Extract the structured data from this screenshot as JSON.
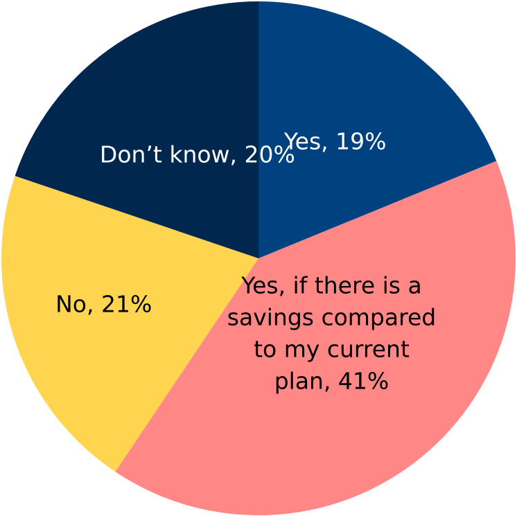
{
  "chart_data": {
    "type": "pie",
    "start_angle_deg": 0,
    "direction": "clockwise",
    "slices": [
      {
        "label_lines": [
          "Yes, 19%"
        ],
        "category": "Yes",
        "value": 19,
        "color": "#00417F",
        "text_color": "#ffffff"
      },
      {
        "label_lines": [
          "Yes, if there is a",
          "savings compared",
          "to my current",
          "plan, 41%"
        ],
        "category": "Yes, if there is a savings compared to my current plan",
        "value": 41,
        "color": "#FF8886",
        "text_color": "#000000"
      },
      {
        "label_lines": [
          "No, 21%"
        ],
        "category": "No",
        "value": 21,
        "color": "#FFD54F",
        "text_color": "#000000"
      },
      {
        "label_lines": [
          "Don’t know, 20%"
        ],
        "category": "Don’t know",
        "value": 20,
        "color": "#00284F",
        "text_color": "#ffffff"
      }
    ]
  }
}
